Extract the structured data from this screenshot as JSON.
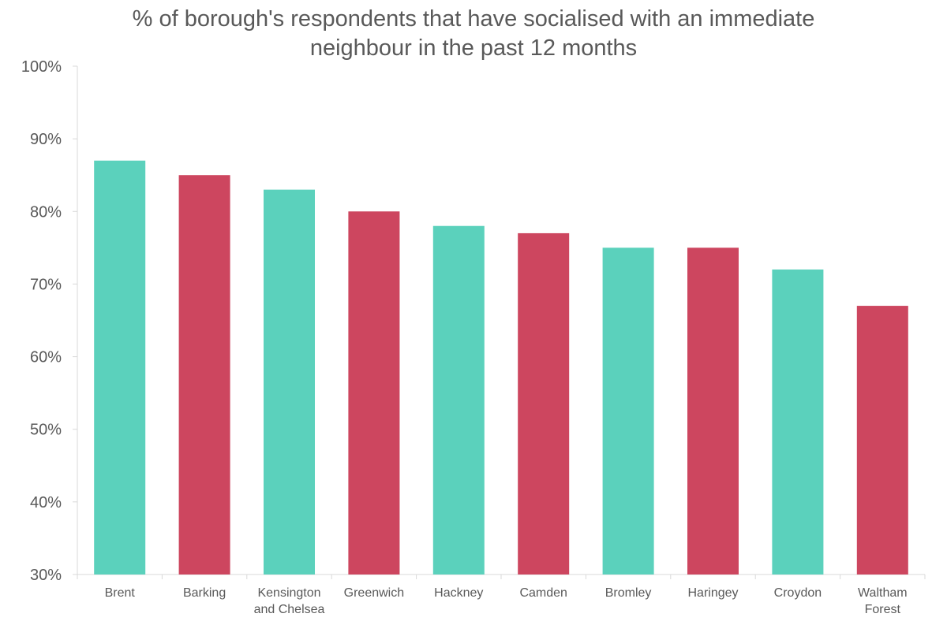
{
  "chart_data": {
    "type": "bar",
    "title": "% of borough's respondents that have socialised with an immediate neighbour in the past 12 months",
    "title_lines": [
      "% of borough's respondents that have socialised with an immediate",
      "neighbour in the past 12 months"
    ],
    "xlabel": "",
    "ylabel": "",
    "ylim": [
      30,
      100
    ],
    "y_ticks": [
      30,
      40,
      50,
      60,
      70,
      80,
      90,
      100
    ],
    "y_tick_labels": [
      "30%",
      "40%",
      "50%",
      "60%",
      "70%",
      "80%",
      "90%",
      "100%"
    ],
    "grid": false,
    "legend": "none",
    "categories": [
      [
        "Brent"
      ],
      [
        "Barking"
      ],
      [
        "Kensington",
        "and Chelsea"
      ],
      [
        "Greenwich"
      ],
      [
        "Hackney"
      ],
      [
        "Camden"
      ],
      [
        "Bromley"
      ],
      [
        "Haringey"
      ],
      [
        "Croydon"
      ],
      [
        "Waltham",
        "Forest"
      ]
    ],
    "values": [
      87,
      85,
      83,
      80,
      78,
      77,
      75,
      75,
      72,
      67
    ],
    "bar_colors": [
      "#5bd1bc",
      "#cd465f",
      "#5bd1bc",
      "#cd465f",
      "#5bd1bc",
      "#cd465f",
      "#5bd1bc",
      "#cd465f",
      "#5bd1bc",
      "#cd465f"
    ],
    "axis_color": "#d9d9d9",
    "text_color": "#595959"
  }
}
